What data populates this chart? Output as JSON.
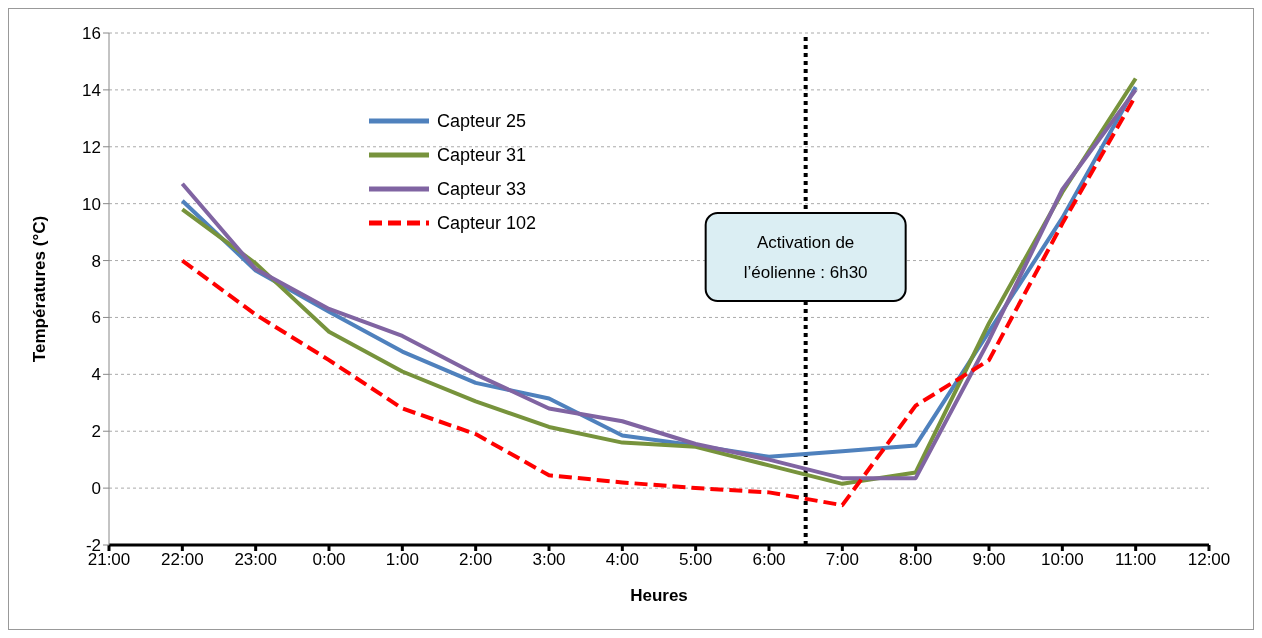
{
  "chart_data": {
    "type": "line",
    "xlabel": "Heures",
    "ylabel": "Températures (°C)",
    "x": [
      "2000-01-01T22:00",
      "2000-01-01T23:00",
      "2000-01-02T00:00",
      "2000-01-02T01:00",
      "2000-01-02T02:00",
      "2000-01-02T03:00",
      "2000-01-02T04:00",
      "2000-01-02T05:00",
      "2000-01-02T06:00",
      "2000-01-02T07:00",
      "2000-01-02T08:00",
      "2000-01-02T09:00",
      "2000-01-02T10:00",
      "2000-01-02T11:00"
    ],
    "xlim": [
      "2000-01-01T21:00",
      "2000-01-02T12:00"
    ],
    "xticks": [
      {
        "value": "2000-01-01T21:00",
        "label": "21:00"
      },
      {
        "value": "2000-01-01T22:00",
        "label": "22:00"
      },
      {
        "value": "2000-01-01T23:00",
        "label": "23:00"
      },
      {
        "value": "2000-01-02T00:00",
        "label": "0:00"
      },
      {
        "value": "2000-01-02T01:00",
        "label": "1:00"
      },
      {
        "value": "2000-01-02T02:00",
        "label": "2:00"
      },
      {
        "value": "2000-01-02T03:00",
        "label": "3:00"
      },
      {
        "value": "2000-01-02T04:00",
        "label": "4:00"
      },
      {
        "value": "2000-01-02T05:00",
        "label": "5:00"
      },
      {
        "value": "2000-01-02T06:00",
        "label": "6:00"
      },
      {
        "value": "2000-01-02T07:00",
        "label": "7:00"
      },
      {
        "value": "2000-01-02T08:00",
        "label": "8:00"
      },
      {
        "value": "2000-01-02T09:00",
        "label": "9:00"
      },
      {
        "value": "2000-01-02T10:00",
        "label": "10:00"
      },
      {
        "value": "2000-01-02T11:00",
        "label": "11:00"
      },
      {
        "value": "2000-01-02T12:00",
        "label": "12:00"
      }
    ],
    "ylim": [
      -2,
      16
    ],
    "yticks": [
      -2,
      0,
      2,
      4,
      6,
      8,
      10,
      12,
      14,
      16
    ],
    "grid": "y",
    "legend": "top left",
    "marker": "none",
    "series": [
      {
        "name": "Capteur 25",
        "color": "#4f81bd",
        "line_style": "solid",
        "values": [
          10.1,
          7.65,
          6.2,
          4.8,
          3.7,
          3.15,
          1.85,
          1.5,
          1.1,
          1.3,
          1.5,
          5.5,
          9.5,
          14.1
        ]
      },
      {
        "name": "Capteur 31",
        "color": "#77933c",
        "line_style": "solid",
        "values": [
          9.8,
          7.9,
          5.5,
          4.1,
          3.05,
          2.15,
          1.6,
          1.45,
          0.8,
          0.15,
          0.55,
          5.8,
          10.4,
          14.4
        ]
      },
      {
        "name": "Capteur 33",
        "color": "#8064a2",
        "line_style": "solid",
        "values": [
          10.7,
          7.7,
          6.3,
          5.35,
          4.0,
          2.8,
          2.35,
          1.55,
          1.0,
          0.35,
          0.35,
          5.2,
          10.5,
          14.0
        ]
      },
      {
        "name": "Capteur 102",
        "color": "#ff0000",
        "line_style": "dashed",
        "values": [
          8.0,
          6.1,
          4.5,
          2.8,
          1.9,
          0.45,
          0.2,
          0.0,
          -0.15,
          -0.6,
          2.9,
          4.5,
          9.3,
          13.8
        ]
      }
    ],
    "ref_lines": [
      {
        "axis": "x",
        "value": "2000-01-02T06:30",
        "label": "Activation de l’éolienne : 6h30",
        "color": "#000000",
        "line_style": "dotted"
      }
    ]
  }
}
